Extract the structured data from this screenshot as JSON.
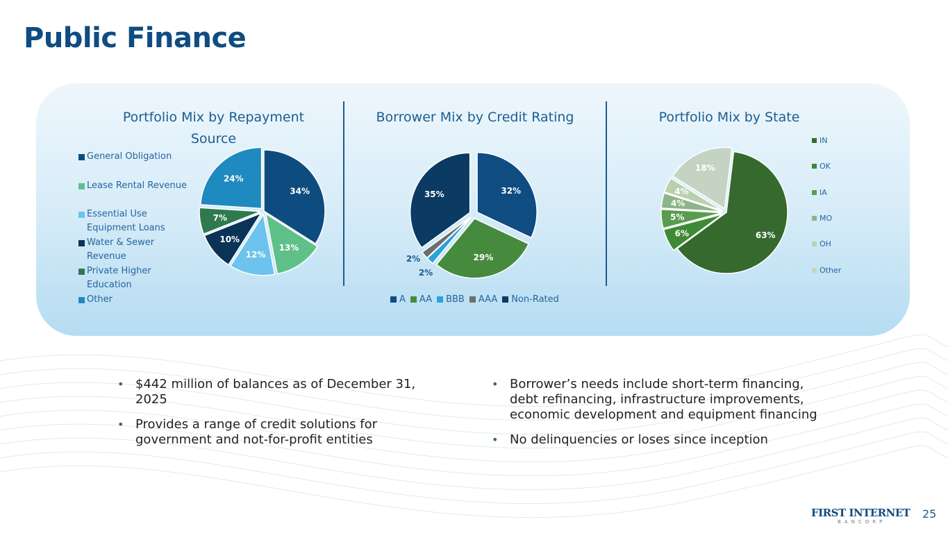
{
  "page": {
    "title": "Public Finance",
    "page_number": "25",
    "logo_text": "FIRST INTERNET",
    "logo_subtext": "BANCORP"
  },
  "colors": {
    "title": "#0f4c81",
    "panel_top": "#eef7fc",
    "panel_bottom": "#b5dcf2",
    "chart_title": "#1c5d90"
  },
  "bullets_left": [
    "$442 million of balances as of December 31, 2025",
    "Provides a range of credit solutions for government and not-for-profit entities"
  ],
  "bullets_right": [
    "Borrower’s needs include short-term financing, debt refinancing, infrastructure improvements, economic development and equipment financing",
    "No delinquencies or loses since inception"
  ],
  "chart_data": [
    {
      "type": "pie",
      "title": "Portfolio Mix by Repayment Source",
      "legend_position": "left",
      "categories": [
        "General Obligation",
        "Lease Rental Revenue",
        "Essential Use Equipment Loans",
        "Water & Sewer Revenue",
        "Private Higher Education",
        "Other"
      ],
      "values": [
        34,
        13,
        12,
        10,
        7,
        24
      ],
      "labels": [
        "34%",
        "13%",
        "12%",
        "10%",
        "7%",
        "24%"
      ],
      "colors": [
        "#0e4c80",
        "#5fc08a",
        "#6cc3ee",
        "#0b3356",
        "#2e7a4e",
        "#1f8ac0"
      ],
      "label_colors": [
        "#ffffff",
        "#ffffff",
        "#ffffff",
        "#ffffff",
        "#ffffff",
        "#ffffff"
      ]
    },
    {
      "type": "pie",
      "title": "Borrower Mix by Credit Rating",
      "legend_position": "bottom",
      "categories": [
        "A",
        "AA",
        "BBB",
        "AAA",
        "Non-Rated"
      ],
      "values": [
        32,
        29,
        2,
        2,
        35
      ],
      "labels": [
        "32%",
        "29%",
        "2%",
        "2%",
        "35%"
      ],
      "colors": [
        "#0f4c81",
        "#468a3e",
        "#29a3dd",
        "#6e6e6e",
        "#0b3a63"
      ],
      "label_colors": [
        "#ffffff",
        "#ffffff",
        "#1c5d90",
        "#1c5d90",
        "#ffffff"
      ]
    },
    {
      "type": "pie",
      "title": "Portfolio Mix by State",
      "legend_position": "right",
      "categories": [
        "IN",
        "OK",
        "IA",
        "MO",
        "OH",
        "Other"
      ],
      "values": [
        63,
        6,
        5,
        4,
        4,
        18
      ],
      "labels": [
        "63%",
        "6%",
        "5%",
        "4%",
        "4%",
        "18%"
      ],
      "colors": [
        "#36692e",
        "#3f8a36",
        "#5a9c4e",
        "#8cb58a",
        "#b9d0ad",
        "#c5d3c2"
      ],
      "label_colors": [
        "#ffffff",
        "#ffffff",
        "#ffffff",
        "#ffffff",
        "#ffffff",
        "#ffffff"
      ]
    }
  ]
}
